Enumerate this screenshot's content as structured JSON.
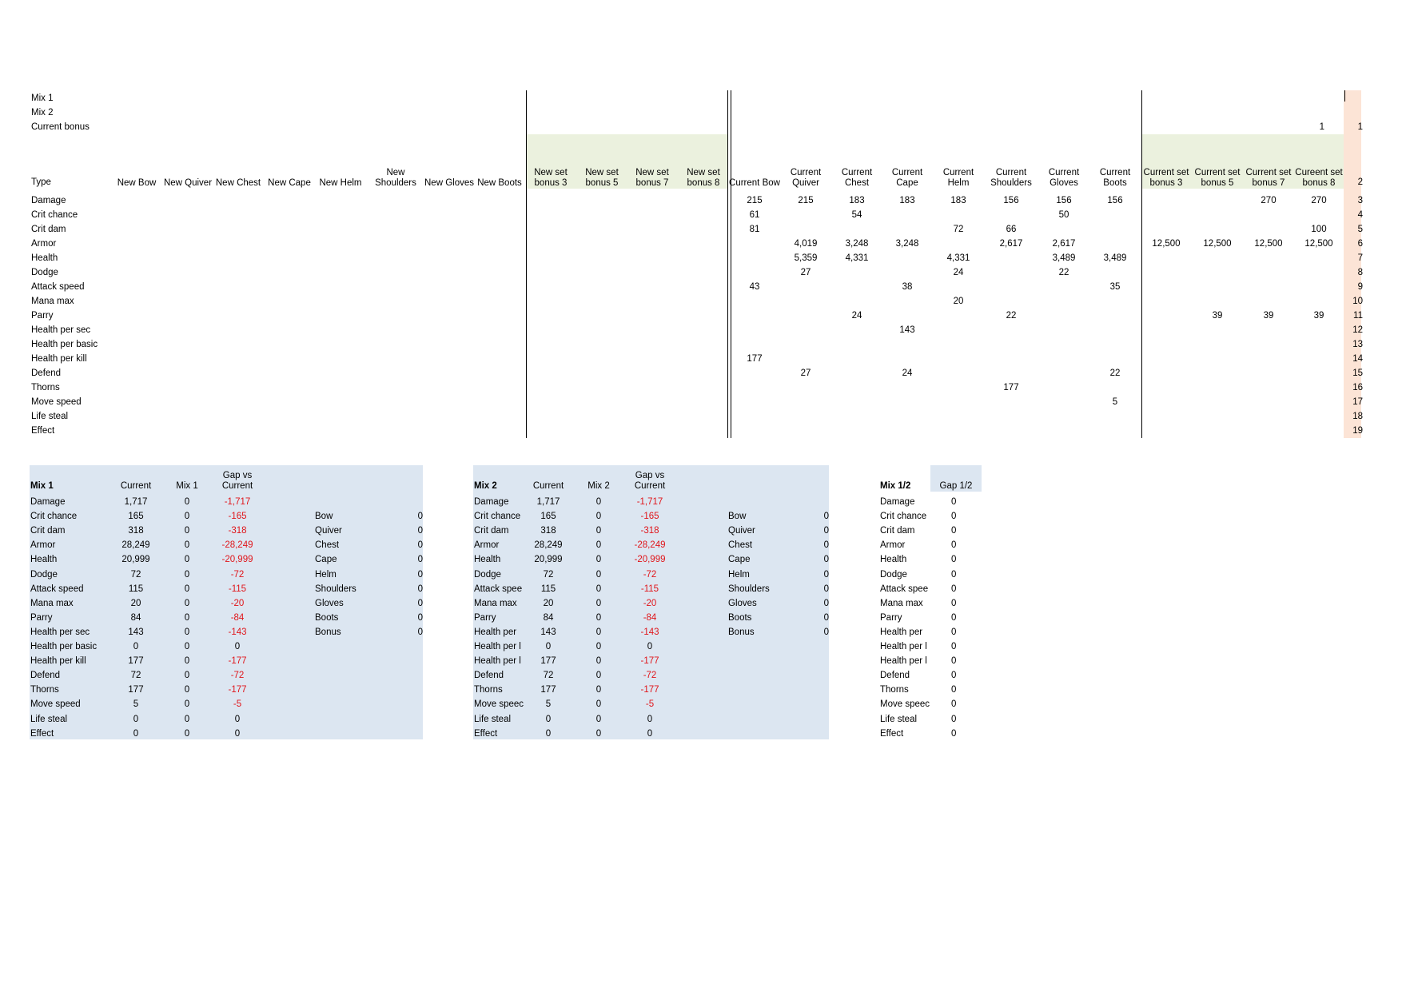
{
  "top": {
    "labels": [
      "Mix 1",
      "Mix 2",
      "Current bonus"
    ],
    "current_bonus_value": "1",
    "corner_values": [
      "1",
      "2"
    ],
    "headers": [
      "Type",
      "New Bow",
      "New Quiver",
      "New Chest",
      "New Cape",
      "New Helm",
      "New Shoulders",
      "New Gloves",
      "New Boots",
      "New set bonus 3",
      "New set bonus 5",
      "New set bonus 7",
      "New set bonus 8",
      "Current Bow",
      "Current Quiver",
      "Current Chest",
      "Current Cape",
      "Current Helm",
      "Current Shoulders",
      "Current Gloves",
      "Current Boots",
      "Current set bonus 3",
      "Current set bonus 5",
      "Current set bonus 7",
      "Cureent set bonus 8"
    ],
    "rows": [
      {
        "name": "Damage",
        "n": "3",
        "v": {
          "13": "215",
          "14": "215",
          "15": "183",
          "16": "183",
          "17": "183",
          "18": "156",
          "19": "156",
          "20": "156",
          "23": "270",
          "24": "270"
        }
      },
      {
        "name": "Crit chance",
        "n": "4",
        "v": {
          "13": "61",
          "15": "54",
          "19": "50"
        }
      },
      {
        "name": "Crit dam",
        "n": "5",
        "v": {
          "13": "81",
          "17": "72",
          "18": "66",
          "24": "100"
        }
      },
      {
        "name": "Armor",
        "n": "6",
        "v": {
          "14": "4,019",
          "15": "3,248",
          "16": "3,248",
          "18": "2,617",
          "19": "2,617",
          "21": "12,500",
          "22": "12,500",
          "23": "12,500",
          "24": "12,500"
        }
      },
      {
        "name": "Health",
        "n": "7",
        "v": {
          "14": "5,359",
          "15": "4,331",
          "17": "4,331",
          "19": "3,489",
          "20": "3,489"
        }
      },
      {
        "name": "Dodge",
        "n": "8",
        "v": {
          "14": "27",
          "17": "24",
          "19": "22"
        }
      },
      {
        "name": "Attack speed",
        "n": "9",
        "v": {
          "13": "43",
          "16": "38",
          "20": "35"
        }
      },
      {
        "name": "Mana max",
        "n": "10",
        "v": {
          "17": "20"
        }
      },
      {
        "name": "Parry",
        "n": "11",
        "v": {
          "15": "24",
          "18": "22",
          "22": "39",
          "23": "39",
          "24": "39"
        }
      },
      {
        "name": "Health per sec",
        "n": "12",
        "v": {
          "16": "143"
        }
      },
      {
        "name": "Health per basic",
        "n": "13",
        "v": {}
      },
      {
        "name": "Health per kill",
        "n": "14",
        "v": {
          "13": "177"
        }
      },
      {
        "name": "Defend",
        "n": "15",
        "v": {
          "14": "27",
          "16": "24",
          "20": "22"
        }
      },
      {
        "name": "Thorns",
        "n": "16",
        "v": {
          "18": "177"
        }
      },
      {
        "name": "Move speed",
        "n": "17",
        "v": {
          "20": "5"
        }
      },
      {
        "name": "Life steal",
        "n": "18",
        "v": {}
      },
      {
        "name": "Effect",
        "n": "19",
        "v": {}
      }
    ]
  },
  "mix1": {
    "title": "Mix 1",
    "h_current": "Current",
    "h_mix": "Mix 1",
    "h_gap": "Gap vs Current",
    "rows": [
      [
        "Damage",
        "1,717",
        "0",
        "-1,717"
      ],
      [
        "Crit chance",
        "165",
        "0",
        "-165"
      ],
      [
        "Crit dam",
        "318",
        "0",
        "-318"
      ],
      [
        "Armor",
        "28,249",
        "0",
        "-28,249"
      ],
      [
        "Health",
        "20,999",
        "0",
        "-20,999"
      ],
      [
        "Dodge",
        "72",
        "0",
        "-72"
      ],
      [
        "Attack speed",
        "115",
        "0",
        "-115"
      ],
      [
        "Mana max",
        "20",
        "0",
        "-20"
      ],
      [
        "Parry",
        "84",
        "0",
        "-84"
      ],
      [
        "Health per sec",
        "143",
        "0",
        "-143"
      ],
      [
        "Health per basic",
        "0",
        "0",
        "0"
      ],
      [
        "Health per kill",
        "177",
        "0",
        "-177"
      ],
      [
        "Defend",
        "72",
        "0",
        "-72"
      ],
      [
        "Thorns",
        "177",
        "0",
        "-177"
      ],
      [
        "Move speed",
        "5",
        "0",
        "-5"
      ],
      [
        "Life steal",
        "0",
        "0",
        "0"
      ],
      [
        "Effect",
        "0",
        "0",
        "0"
      ]
    ],
    "slots": [
      [
        "Bow",
        "0"
      ],
      [
        "Quiver",
        "0"
      ],
      [
        "Chest",
        "0"
      ],
      [
        "Cape",
        "0"
      ],
      [
        "Helm",
        "0"
      ],
      [
        "Shoulders",
        "0"
      ],
      [
        "Gloves",
        "0"
      ],
      [
        "Boots",
        "0"
      ],
      [
        "Bonus",
        "0"
      ]
    ]
  },
  "mix2": {
    "title": "Mix 2",
    "h_current": "Current",
    "h_mix": "Mix 2",
    "h_gap": "Gap vs Current",
    "rows": [
      [
        "Damage",
        "1,717",
        "0",
        "-1,717"
      ],
      [
        "Crit chance",
        "165",
        "0",
        "-165"
      ],
      [
        "Crit dam",
        "318",
        "0",
        "-318"
      ],
      [
        "Armor",
        "28,249",
        "0",
        "-28,249"
      ],
      [
        "Health",
        "20,999",
        "0",
        "-20,999"
      ],
      [
        "Dodge",
        "72",
        "0",
        "-72"
      ],
      [
        "Attack spee",
        "115",
        "0",
        "-115"
      ],
      [
        "Mana max",
        "20",
        "0",
        "-20"
      ],
      [
        "Parry",
        "84",
        "0",
        "-84"
      ],
      [
        "Health per",
        "143",
        "0",
        "-143"
      ],
      [
        "Health per l",
        "0",
        "0",
        "0"
      ],
      [
        "Health per l",
        "177",
        "0",
        "-177"
      ],
      [
        "Defend",
        "72",
        "0",
        "-72"
      ],
      [
        "Thorns",
        "177",
        "0",
        "-177"
      ],
      [
        "Move speec",
        "5",
        "0",
        "-5"
      ],
      [
        "Life steal",
        "0",
        "0",
        "0"
      ],
      [
        "Effect",
        "0",
        "0",
        "0"
      ]
    ],
    "slots": [
      [
        "Bow",
        "0"
      ],
      [
        "Quiver",
        "0"
      ],
      [
        "Chest",
        "0"
      ],
      [
        "Cape",
        "0"
      ],
      [
        "Helm",
        "0"
      ],
      [
        "Shoulders",
        "0"
      ],
      [
        "Gloves",
        "0"
      ],
      [
        "Boots",
        "0"
      ],
      [
        "Bonus",
        "0"
      ]
    ]
  },
  "mix12": {
    "title": "Mix 1/2",
    "h_gap": "Gap 1/2",
    "rows": [
      [
        "Damage",
        "0"
      ],
      [
        "Crit chance",
        "0"
      ],
      [
        "Crit dam",
        "0"
      ],
      [
        "Armor",
        "0"
      ],
      [
        "Health",
        "0"
      ],
      [
        "Dodge",
        "0"
      ],
      [
        "Attack spee",
        "0"
      ],
      [
        "Mana max",
        "0"
      ],
      [
        "Parry",
        "0"
      ],
      [
        "Health per",
        "0"
      ],
      [
        "Health per l",
        "0"
      ],
      [
        "Health per l",
        "0"
      ],
      [
        "Defend",
        "0"
      ],
      [
        "Thorns",
        "0"
      ],
      [
        "Move speec",
        "0"
      ],
      [
        "Life steal",
        "0"
      ],
      [
        "Effect",
        "0"
      ]
    ]
  },
  "colors": {
    "green_header": "#ebf1de",
    "peach": "#fce4d6",
    "blue_panel": "#dce6f1",
    "negative": "#e0151a"
  }
}
